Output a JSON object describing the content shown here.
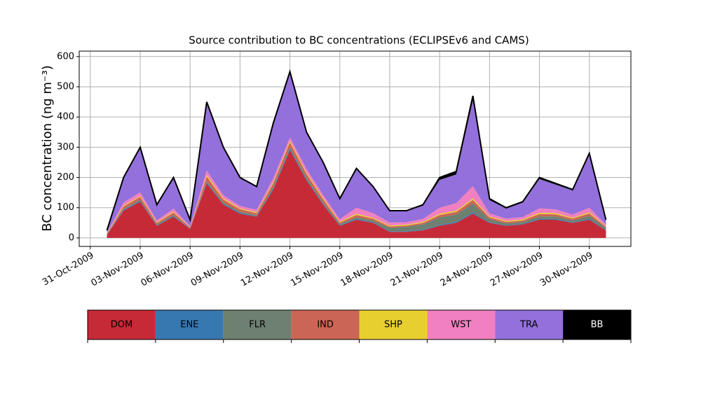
{
  "chart_data": {
    "type": "stacked_area",
    "title": "Source contribution to BC concentrations (ECLIPSEv6 and CAMS)",
    "y_label": "BC concentration (ng m⁻³)",
    "x": [
      "2009-11-01",
      "2009-11-02",
      "2009-11-03",
      "2009-11-04",
      "2009-11-05",
      "2009-11-06",
      "2009-11-07",
      "2009-11-08",
      "2009-11-09",
      "2009-11-10",
      "2009-11-11",
      "2009-11-12",
      "2009-11-13",
      "2009-11-14",
      "2009-11-15",
      "2009-11-16",
      "2009-11-17",
      "2009-11-18",
      "2009-11-19",
      "2009-11-20",
      "2009-11-21",
      "2009-11-22",
      "2009-11-23",
      "2009-11-24",
      "2009-11-25",
      "2009-11-26",
      "2009-11-27",
      "2009-11-28",
      "2009-11-29",
      "2009-11-30",
      "2009-12-01"
    ],
    "series": [
      {
        "name": "DOM",
        "color": "#c62a37",
        "values": [
          10,
          90,
          120,
          40,
          70,
          30,
          180,
          110,
          80,
          70,
          160,
          290,
          190,
          110,
          40,
          60,
          50,
          20,
          20,
          25,
          40,
          50,
          80,
          50,
          40,
          45,
          60,
          60,
          50,
          60,
          25
        ]
      },
      {
        "name": "ENE",
        "color": "#3878b0",
        "values": [
          1,
          3,
          3,
          2,
          3,
          1,
          4,
          3,
          3,
          2,
          4,
          5,
          4,
          3,
          2,
          3,
          2,
          2,
          2,
          2,
          3,
          3,
          4,
          2,
          2,
          2,
          3,
          3,
          2,
          3,
          1
        ]
      },
      {
        "name": "FLR",
        "color": "#6e8070",
        "values": [
          1,
          3,
          3,
          3,
          3,
          1,
          4,
          4,
          4,
          3,
          5,
          6,
          6,
          5,
          4,
          5,
          6,
          12,
          15,
          18,
          25,
          25,
          30,
          10,
          6,
          6,
          8,
          8,
          6,
          10,
          8
        ]
      },
      {
        "name": "IND",
        "color": "#cb6555",
        "values": [
          2,
          8,
          10,
          5,
          8,
          3,
          15,
          10,
          8,
          7,
          12,
          15,
          12,
          10,
          5,
          8,
          6,
          4,
          4,
          5,
          8,
          8,
          12,
          6,
          5,
          5,
          8,
          7,
          6,
          8,
          3
        ]
      },
      {
        "name": "SHP",
        "color": "#e8cf30",
        "values": [
          1,
          3,
          3,
          2,
          3,
          1,
          5,
          4,
          3,
          3,
          4,
          5,
          4,
          4,
          3,
          4,
          3,
          3,
          3,
          3,
          4,
          4,
          5,
          3,
          3,
          3,
          4,
          4,
          3,
          4,
          2
        ]
      },
      {
        "name": "WST",
        "color": "#f080c0",
        "values": [
          2,
          10,
          12,
          6,
          10,
          3,
          15,
          10,
          8,
          8,
          12,
          12,
          12,
          10,
          8,
          20,
          15,
          10,
          8,
          10,
          20,
          25,
          40,
          10,
          8,
          8,
          15,
          12,
          10,
          15,
          5
        ]
      },
      {
        "name": "TRA",
        "color": "#9370db",
        "values": [
          8,
          81,
          147,
          50,
          98,
          20,
          224,
          156,
          91,
          75,
          180,
          214,
          119,
          105,
          66,
          127,
          86,
          37,
          36,
          44,
          92,
          95,
          284,
          44,
          33,
          48,
          97,
          82,
          80,
          175,
          14
        ]
      },
      {
        "name": "BB",
        "color": "#000000",
        "values": [
          0,
          2,
          2,
          2,
          5,
          1,
          3,
          3,
          3,
          2,
          3,
          3,
          3,
          3,
          2,
          3,
          2,
          2,
          2,
          3,
          8,
          10,
          15,
          5,
          3,
          3,
          5,
          4,
          3,
          5,
          2
        ]
      }
    ],
    "xlim": [
      "2009-10-30T08:00",
      "2009-12-02T12:00"
    ],
    "xticks": [
      {
        "value": "2009-10-31",
        "label": "31-Oct-2009"
      },
      {
        "value": "2009-11-03",
        "label": "03-Nov-2009"
      },
      {
        "value": "2009-11-06",
        "label": "06-Nov-2009"
      },
      {
        "value": "2009-11-09",
        "label": "09-Nov-2009"
      },
      {
        "value": "2009-11-12",
        "label": "12-Nov-2009"
      },
      {
        "value": "2009-11-15",
        "label": "15-Nov-2009"
      },
      {
        "value": "2009-11-18",
        "label": "18-Nov-2009"
      },
      {
        "value": "2009-11-21",
        "label": "21-Nov-2009"
      },
      {
        "value": "2009-11-24",
        "label": "24-Nov-2009"
      },
      {
        "value": "2009-11-27",
        "label": "27-Nov-2009"
      },
      {
        "value": "2009-11-30",
        "label": "30-Nov-2009"
      }
    ],
    "ylim": [
      -28,
      618
    ],
    "yticks": [
      0,
      100,
      200,
      300,
      400,
      500,
      600
    ],
    "grid": true
  }
}
